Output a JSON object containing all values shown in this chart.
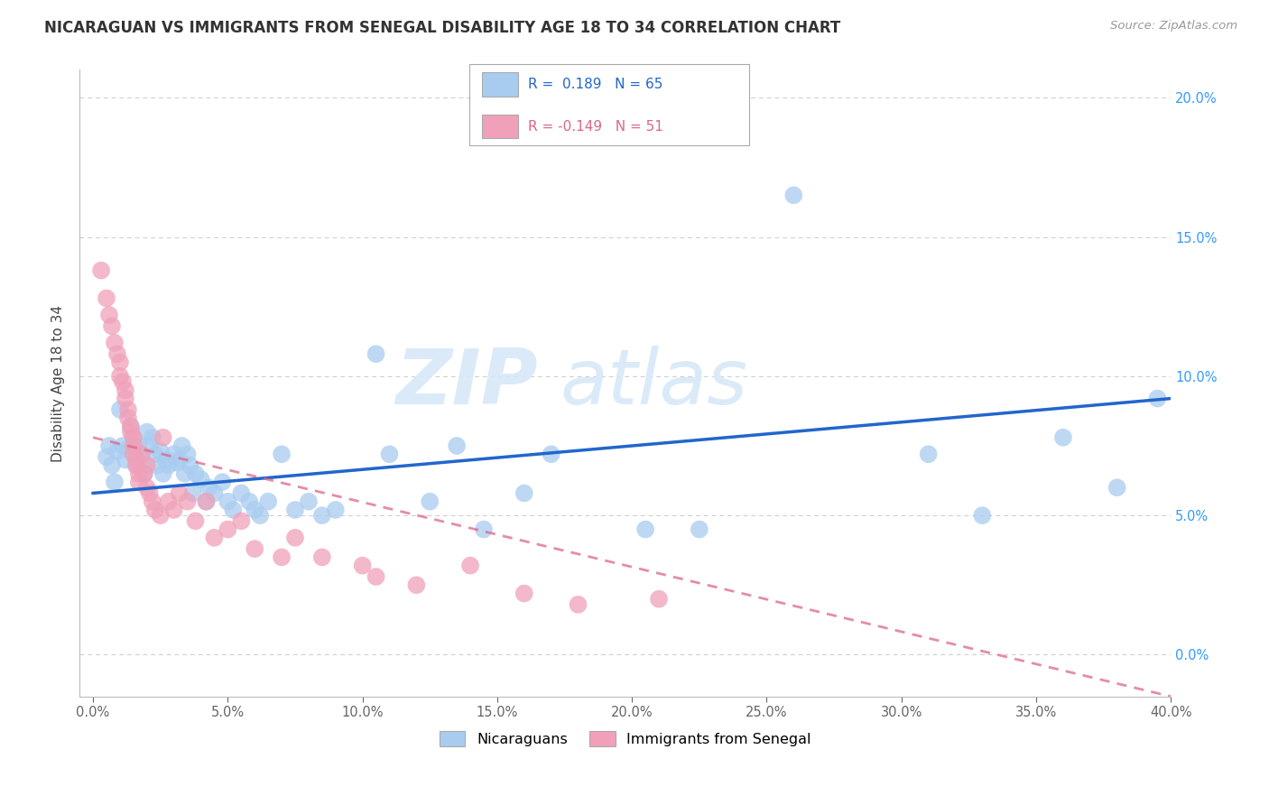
{
  "title": "NICARAGUAN VS IMMIGRANTS FROM SENEGAL DISABILITY AGE 18 TO 34 CORRELATION CHART",
  "source": "Source: ZipAtlas.com",
  "ylabel": "Disability Age 18 to 34",
  "xlabel_ticks": [
    0.0,
    5.0,
    10.0,
    15.0,
    20.0,
    25.0,
    30.0,
    35.0,
    40.0
  ],
  "ylabel_ticks": [
    0.0,
    5.0,
    10.0,
    15.0,
    20.0
  ],
  "xlim": [
    -0.5,
    40.0
  ],
  "ylim": [
    -1.5,
    21.0
  ],
  "watermark_zip": "ZIP",
  "watermark_atlas": "atlas",
  "blue_color": "#A8CCF0",
  "pink_color": "#F0A0B8",
  "blue_line_color": "#2266CC",
  "pink_line_color": "#DD6688",
  "blue_scatter": [
    [
      0.5,
      7.1
    ],
    [
      0.6,
      7.5
    ],
    [
      0.7,
      6.8
    ],
    [
      0.8,
      6.2
    ],
    [
      0.9,
      7.3
    ],
    [
      1.0,
      8.8
    ],
    [
      1.1,
      7.5
    ],
    [
      1.2,
      7.0
    ],
    [
      1.3,
      7.4
    ],
    [
      1.4,
      8.2
    ],
    [
      1.5,
      7.8
    ],
    [
      1.6,
      6.8
    ],
    [
      1.7,
      7.5
    ],
    [
      1.8,
      7.0
    ],
    [
      1.9,
      6.5
    ],
    [
      2.0,
      8.0
    ],
    [
      2.1,
      7.5
    ],
    [
      2.2,
      7.8
    ],
    [
      2.3,
      7.2
    ],
    [
      2.4,
      6.8
    ],
    [
      2.5,
      7.3
    ],
    [
      2.6,
      6.5
    ],
    [
      2.7,
      7.0
    ],
    [
      2.8,
      6.8
    ],
    [
      3.0,
      7.2
    ],
    [
      3.1,
      6.9
    ],
    [
      3.2,
      7.0
    ],
    [
      3.3,
      7.5
    ],
    [
      3.4,
      6.5
    ],
    [
      3.5,
      7.2
    ],
    [
      3.6,
      6.8
    ],
    [
      3.7,
      5.8
    ],
    [
      3.8,
      6.5
    ],
    [
      4.0,
      6.3
    ],
    [
      4.2,
      5.5
    ],
    [
      4.3,
      6.0
    ],
    [
      4.5,
      5.8
    ],
    [
      4.8,
      6.2
    ],
    [
      5.0,
      5.5
    ],
    [
      5.2,
      5.2
    ],
    [
      5.5,
      5.8
    ],
    [
      5.8,
      5.5
    ],
    [
      6.0,
      5.2
    ],
    [
      6.2,
      5.0
    ],
    [
      6.5,
      5.5
    ],
    [
      7.0,
      7.2
    ],
    [
      7.5,
      5.2
    ],
    [
      8.0,
      5.5
    ],
    [
      8.5,
      5.0
    ],
    [
      9.0,
      5.2
    ],
    [
      10.5,
      10.8
    ],
    [
      11.0,
      7.2
    ],
    [
      12.5,
      5.5
    ],
    [
      13.5,
      7.5
    ],
    [
      14.5,
      4.5
    ],
    [
      16.0,
      5.8
    ],
    [
      17.0,
      7.2
    ],
    [
      20.5,
      4.5
    ],
    [
      22.5,
      4.5
    ],
    [
      26.0,
      16.5
    ],
    [
      31.0,
      7.2
    ],
    [
      33.0,
      5.0
    ],
    [
      36.0,
      7.8
    ],
    [
      38.0,
      6.0
    ],
    [
      39.5,
      9.2
    ]
  ],
  "pink_scatter": [
    [
      0.3,
      13.8
    ],
    [
      0.5,
      12.8
    ],
    [
      0.6,
      12.2
    ],
    [
      0.7,
      11.8
    ],
    [
      0.8,
      11.2
    ],
    [
      0.9,
      10.8
    ],
    [
      1.0,
      10.5
    ],
    [
      1.0,
      10.0
    ],
    [
      1.1,
      9.8
    ],
    [
      1.2,
      9.5
    ],
    [
      1.2,
      9.2
    ],
    [
      1.3,
      8.8
    ],
    [
      1.3,
      8.5
    ],
    [
      1.4,
      8.2
    ],
    [
      1.4,
      8.0
    ],
    [
      1.5,
      7.8
    ],
    [
      1.5,
      7.5
    ],
    [
      1.5,
      7.2
    ],
    [
      1.6,
      7.0
    ],
    [
      1.6,
      6.8
    ],
    [
      1.7,
      6.5
    ],
    [
      1.7,
      6.2
    ],
    [
      1.8,
      7.2
    ],
    [
      1.9,
      6.5
    ],
    [
      2.0,
      6.0
    ],
    [
      2.0,
      6.8
    ],
    [
      2.1,
      5.8
    ],
    [
      2.2,
      5.5
    ],
    [
      2.3,
      5.2
    ],
    [
      2.5,
      5.0
    ],
    [
      2.6,
      7.8
    ],
    [
      2.8,
      5.5
    ],
    [
      3.0,
      5.2
    ],
    [
      3.2,
      5.8
    ],
    [
      3.5,
      5.5
    ],
    [
      3.8,
      4.8
    ],
    [
      4.2,
      5.5
    ],
    [
      4.5,
      4.2
    ],
    [
      5.0,
      4.5
    ],
    [
      5.5,
      4.8
    ],
    [
      6.0,
      3.8
    ],
    [
      7.0,
      3.5
    ],
    [
      7.5,
      4.2
    ],
    [
      8.5,
      3.5
    ],
    [
      10.0,
      3.2
    ],
    [
      10.5,
      2.8
    ],
    [
      12.0,
      2.5
    ],
    [
      14.0,
      3.2
    ],
    [
      16.0,
      2.2
    ],
    [
      18.0,
      1.8
    ],
    [
      21.0,
      2.0
    ]
  ],
  "blue_line_pts": [
    [
      0.0,
      5.8
    ],
    [
      40.0,
      9.2
    ]
  ],
  "pink_line_pts": [
    [
      0.0,
      7.8
    ],
    [
      40.0,
      -1.5
    ]
  ]
}
